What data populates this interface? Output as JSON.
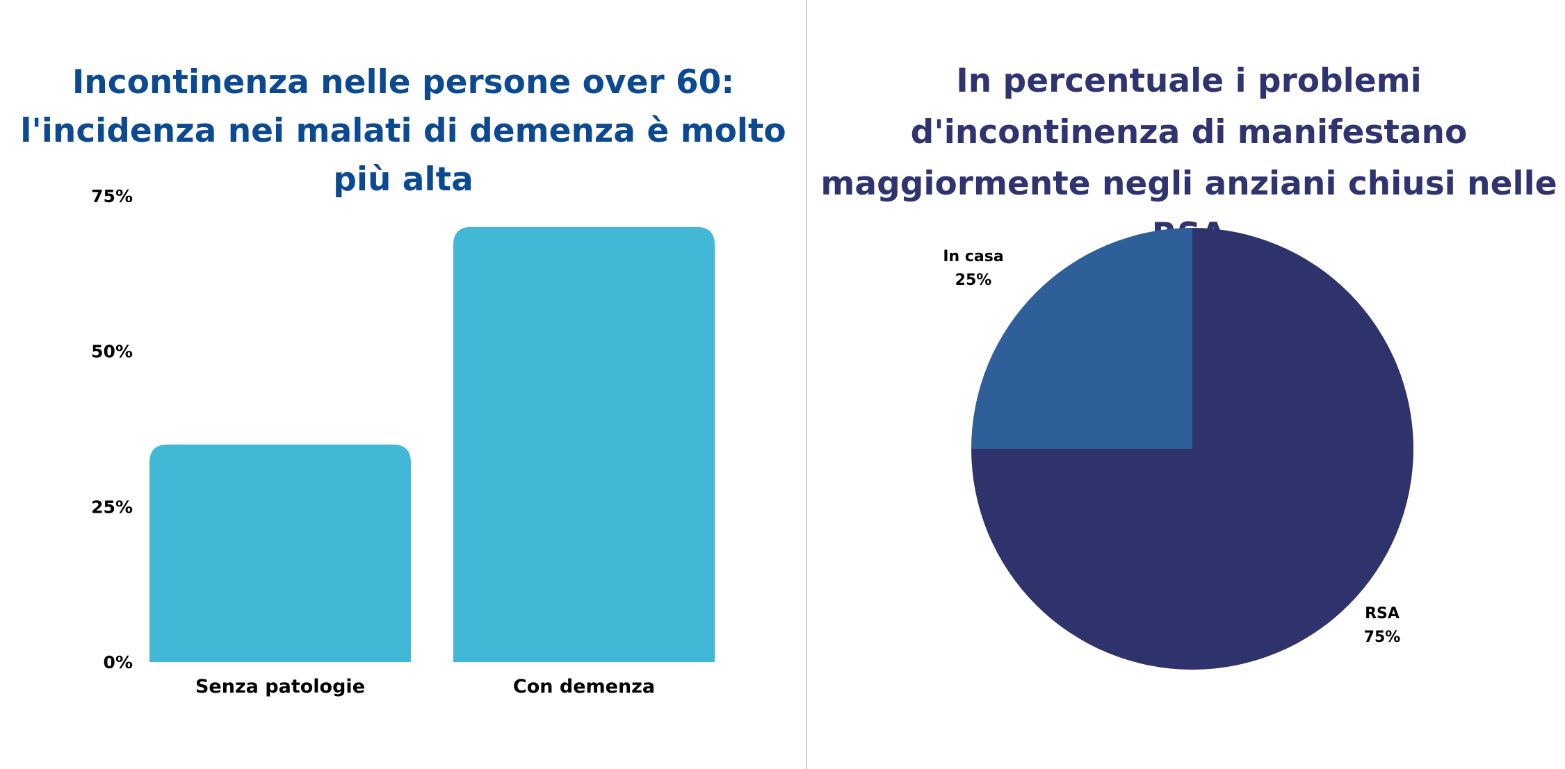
{
  "chart_data": [
    {
      "type": "bar",
      "title": "Incontinenza nelle persone over 60: l'incidenza nei malati di demenza è molto più alta",
      "categories": [
        "Senza patologie",
        "Con demenza"
      ],
      "values": [
        35,
        70
      ],
      "unit": "%",
      "ylim": [
        0,
        75
      ],
      "yticks": [
        0,
        25,
        50,
        75
      ],
      "ytick_labels": [
        "0%",
        "25%",
        "50%",
        "75%"
      ],
      "xlabel": "",
      "ylabel": "",
      "grid": false,
      "colors": {
        "bar": "#42b7d6"
      }
    },
    {
      "type": "pie",
      "title": "In percentuale i problemi d'incontinenza di manifestano maggiormente negli anziani chiusi nelle RSA",
      "slices": [
        {
          "label": "RSA",
          "value": 75,
          "value_label": "75%",
          "color": "#2f336b"
        },
        {
          "label": "In casa",
          "value": 25,
          "value_label": "25%",
          "color": "#2e5f98"
        }
      ],
      "start_angle": "top",
      "direction": "clockwise"
    }
  ]
}
